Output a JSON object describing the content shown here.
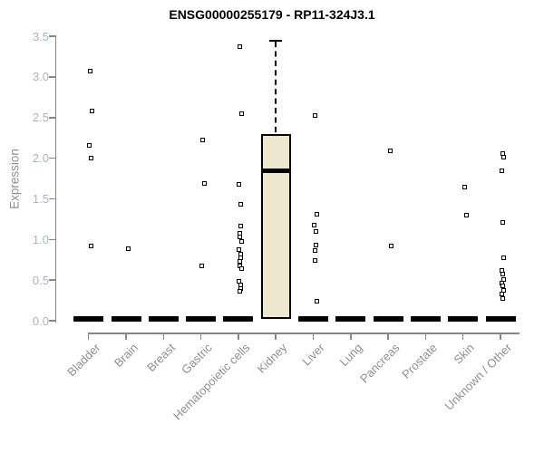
{
  "chart_data": {
    "type": "boxplot",
    "title": "ENSG00000255179 - RP11-324J3.1",
    "ylabel": "Expression",
    "ylim": [
      0.0,
      3.5
    ],
    "yticks": [
      0.0,
      0.5,
      1.0,
      1.5,
      2.0,
      2.5,
      3.0,
      3.5
    ],
    "legend": "none",
    "grid": "off",
    "categories": [
      "Bladder",
      "Brain",
      "Breast",
      "Gastric",
      "Hematopoietic cells",
      "Kidney",
      "Liver",
      "Lung",
      "Pancreas",
      "Prostate",
      "Skin",
      "Unknown / Other"
    ],
    "groups": [
      {
        "name": "Bladder",
        "collapsed": true,
        "box": {
          "q1": 0.0,
          "median": 0.02,
          "q3": 0.04
        },
        "points": [
          3.07,
          2.58,
          2.16,
          2.0,
          0.92
        ]
      },
      {
        "name": "Brain",
        "collapsed": true,
        "box": {
          "q1": 0.0,
          "median": 0.02,
          "q3": 0.04
        },
        "points": [
          0.89
        ]
      },
      {
        "name": "Breast",
        "collapsed": true,
        "box": {
          "q1": 0.0,
          "median": 0.02,
          "q3": 0.04
        },
        "points": []
      },
      {
        "name": "Gastric",
        "collapsed": true,
        "box": {
          "q1": 0.0,
          "median": 0.02,
          "q3": 0.04
        },
        "points": [
          2.22,
          1.69,
          0.68
        ]
      },
      {
        "name": "Hematopoietic cells",
        "collapsed": true,
        "box": {
          "q1": 0.0,
          "median": 0.02,
          "q3": 0.04
        },
        "points": [
          3.37,
          2.55,
          1.68,
          1.43,
          1.17,
          1.08,
          1.03,
          0.98,
          0.87,
          0.82,
          0.77,
          0.73,
          0.68,
          0.64,
          0.48,
          0.44,
          0.4,
          0.36
        ]
      },
      {
        "name": "Kidney",
        "collapsed": false,
        "box": {
          "q1": 0.02,
          "median": 1.85,
          "q3": 2.3,
          "whisker_high": 3.45,
          "whisker_low": 0.02
        },
        "points": []
      },
      {
        "name": "Liver",
        "collapsed": true,
        "box": {
          "q1": 0.0,
          "median": 0.02,
          "q3": 0.04
        },
        "points": [
          2.52,
          1.31,
          1.18,
          1.1,
          0.93,
          0.86,
          0.74,
          0.24
        ]
      },
      {
        "name": "Lung",
        "collapsed": true,
        "box": {
          "q1": 0.0,
          "median": 0.02,
          "q3": 0.04
        },
        "points": []
      },
      {
        "name": "Pancreas",
        "collapsed": true,
        "box": {
          "q1": 0.0,
          "median": 0.02,
          "q3": 0.04
        },
        "points": [
          2.09,
          0.92
        ]
      },
      {
        "name": "Prostate",
        "collapsed": true,
        "box": {
          "q1": 0.0,
          "median": 0.02,
          "q3": 0.04
        },
        "points": []
      },
      {
        "name": "Skin",
        "collapsed": true,
        "box": {
          "q1": 0.0,
          "median": 0.02,
          "q3": 0.04
        },
        "points": [
          1.64,
          1.3
        ]
      },
      {
        "name": "Unknown / Other",
        "collapsed": true,
        "box": {
          "q1": 0.0,
          "median": 0.02,
          "q3": 0.04
        },
        "points": [
          2.06,
          2.01,
          1.84,
          1.21,
          0.77,
          0.62,
          0.57,
          0.51,
          0.46,
          0.43,
          0.37,
          0.33,
          0.27
        ]
      }
    ],
    "colors": {
      "box_fill": "#EDE7CE",
      "box_border": "#000000",
      "median": "#000000",
      "point": "#000000",
      "axis_line": "#888888",
      "ytick_label": "#A6B4C6",
      "axis_label": "#8F8F8F",
      "category_label": "#8F8F8F",
      "title": "#000000",
      "background": "#FFFFFF"
    }
  }
}
